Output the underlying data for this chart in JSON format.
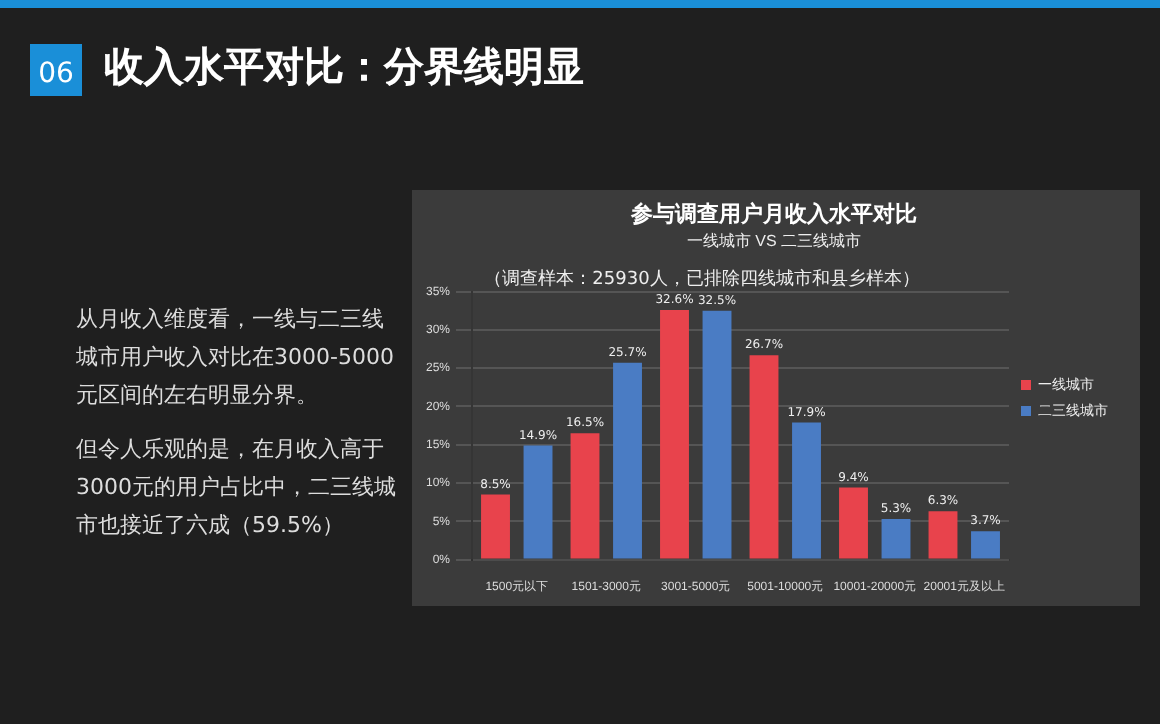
{
  "chart_data": {
    "type": "bar",
    "title": "参与调查用户月收入水平对比",
    "subtitle": "一线城市 VS 二三线城市",
    "categories": [
      "1500元以下",
      "1501-3000元",
      "3001-5000元",
      "5001-10000元",
      "10001-20000元",
      "20001元及以上"
    ],
    "series": [
      {
        "name": "一线城市",
        "color": "#e8434c",
        "values": [
          8.5,
          16.5,
          32.6,
          26.7,
          9.4,
          6.3
        ],
        "value_labels": [
          "8.5%",
          "16.5%",
          "32.6%",
          "26.7%",
          "9.4%",
          "6.3%"
        ]
      },
      {
        "name": "二三线城市",
        "color": "#4a7cc4",
        "values": [
          14.9,
          25.7,
          32.5,
          17.9,
          5.3,
          3.7
        ],
        "value_labels": [
          "14.9%",
          "25.7%",
          "32.5%",
          "17.9%",
          "5.3%",
          "3.7%"
        ]
      }
    ],
    "ylim": [
      0,
      35
    ],
    "yticks": [
      {
        "value": 0,
        "label": "0%"
      },
      {
        "value": 5,
        "label": "5%"
      },
      {
        "value": 10,
        "label": "10%"
      },
      {
        "value": 15,
        "label": "15%"
      },
      {
        "value": 20,
        "label": "20%"
      },
      {
        "value": 25,
        "label": "25%"
      },
      {
        "value": 30,
        "label": "30%"
      },
      {
        "value": 35,
        "label": "35%"
      }
    ],
    "grid": "y",
    "legend": "right",
    "data_labels": true,
    "annotations": [
      "（调查样本：25930人，已排除四线城市和县乡样本）",
      "06",
      "收入水平对比：分界线明显",
      "从月收入维度看，一线与二三线城市用户收入对比在3000-5000元区间的左右明显分界。",
      "但令人乐观的是，在月收入高于3000元的用户占比中，二三线城市也接近了六成（59.5%）"
    ]
  }
}
